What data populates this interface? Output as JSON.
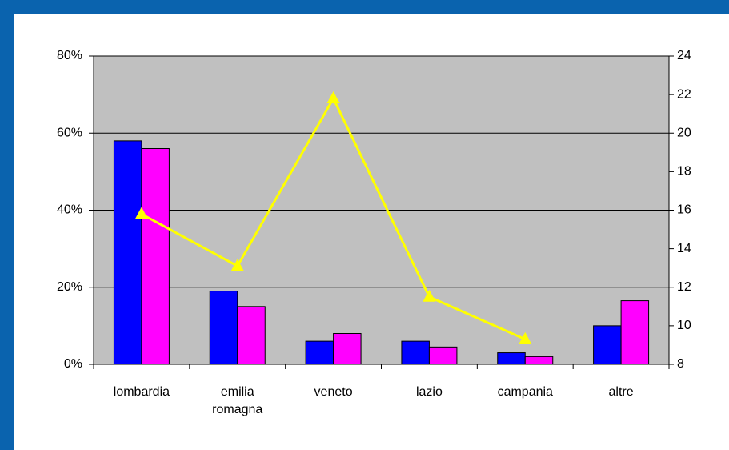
{
  "chart_data": {
    "type": "bar",
    "categories": [
      "lombardia",
      "emilia romagna",
      "veneto",
      "lazio",
      "campania",
      "altre"
    ],
    "series": [
      {
        "color": "#0000ff",
        "values": [
          58,
          19,
          6,
          6,
          3,
          10
        ]
      },
      {
        "color": "#ff00ff",
        "values": [
          56,
          15,
          8,
          4.5,
          2,
          16.5
        ]
      },
      {
        "type": "line",
        "axis": "y2",
        "color": "#ffff00",
        "marker": "triangle",
        "values": [
          15.8,
          13.1,
          21.8,
          11.5,
          9.3,
          null
        ]
      }
    ],
    "ylim": [
      0,
      80
    ],
    "yticks": [
      {
        "value": 0,
        "label": "0%"
      },
      {
        "value": 20,
        "label": "20%"
      },
      {
        "value": 40,
        "label": "40%"
      },
      {
        "value": 60,
        "label": "60%"
      },
      {
        "value": 80,
        "label": "80%"
      }
    ],
    "y2lim": [
      8,
      24
    ],
    "y2ticks": [
      8,
      10,
      12,
      14,
      16,
      18,
      20,
      22,
      24
    ],
    "grid": true,
    "plot_background": "#c0c0c0"
  }
}
